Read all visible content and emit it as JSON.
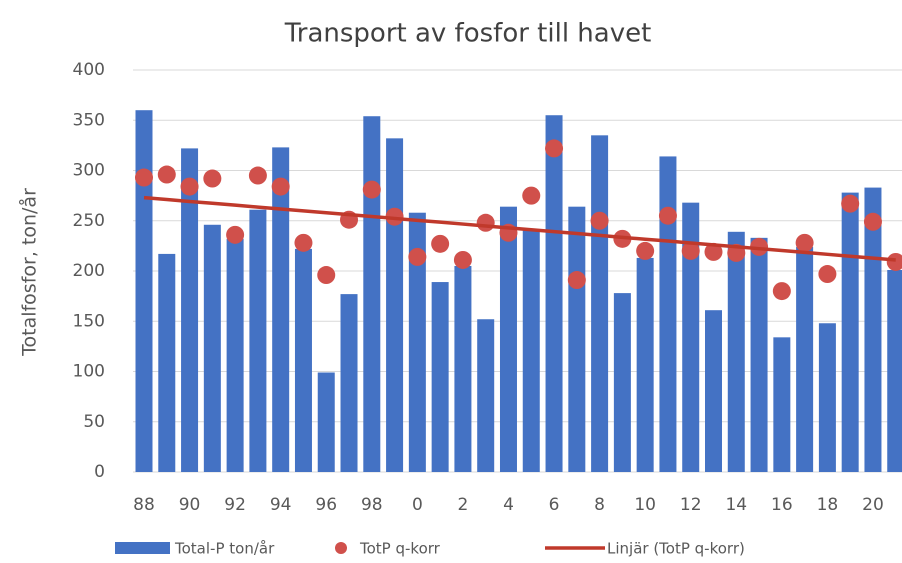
{
  "chart_data": {
    "type": "bar",
    "title": "Transport av fosfor till havet",
    "y_label": "Totalfosfor, ton/år",
    "categories": [
      "88",
      null,
      "90",
      null,
      "92",
      null,
      "94",
      null,
      "96",
      null,
      "98",
      null,
      "0",
      null,
      "2",
      null,
      "4",
      null,
      "6",
      null,
      "8",
      null,
      "10",
      null,
      "12",
      null,
      "14",
      null,
      "16",
      null,
      "18",
      null,
      "20",
      null
    ],
    "series": [
      {
        "name": "Total-P ton/år",
        "type": "bar",
        "color": "#4472c4",
        "values": [
          360,
          217,
          322,
          246,
          232,
          261,
          323,
          222,
          99,
          177,
          354,
          332,
          258,
          189,
          205,
          152,
          264,
          241,
          355,
          264,
          335,
          178,
          213,
          314,
          268,
          161,
          239,
          233,
          134,
          224,
          148,
          278,
          283,
          201
        ]
      },
      {
        "name": "TotP q-korr",
        "type": "scatter",
        "color": "#d0504b",
        "values": [
          293,
          296,
          284,
          292,
          236,
          295,
          284,
          228,
          196,
          251,
          281,
          254,
          214,
          227,
          211,
          248,
          238,
          275,
          322,
          191,
          250,
          232,
          220,
          255,
          220,
          219,
          218,
          224,
          180,
          228,
          197,
          267,
          249,
          209
        ]
      },
      {
        "name": "Linjär (TotP q-korr)",
        "type": "line",
        "color": "#c0392b",
        "values": [
          273,
          271.1,
          269.2,
          267.4,
          265.5,
          263.6,
          261.7,
          259.8,
          258.0,
          256.1,
          254.2,
          252.3,
          250.4,
          248.6,
          246.7,
          244.8,
          242.9,
          241.0,
          239.2,
          237.3,
          235.4,
          233.5,
          231.6,
          229.8,
          227.9,
          226.0,
          224.1,
          222.2,
          220.4,
          218.5,
          216.6,
          214.7,
          212.8,
          211.0
        ]
      }
    ],
    "ylim": [
      0,
      400
    ],
    "yticks": [
      0,
      50,
      100,
      150,
      200,
      250,
      300,
      350,
      400
    ],
    "grid": true,
    "legend": "bottom"
  }
}
